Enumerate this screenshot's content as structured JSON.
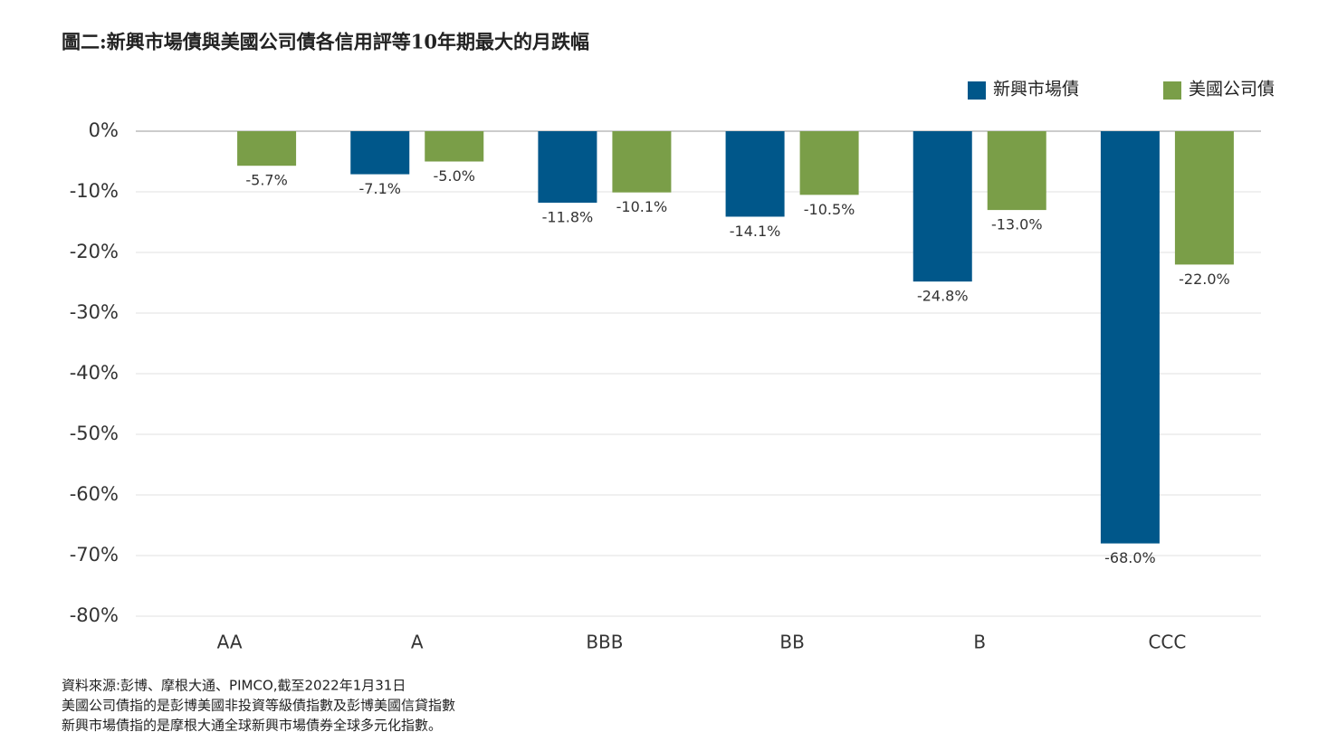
{
  "chart_data": {
    "type": "bar",
    "title": "圖二:新興市場債與美國公司債各信用評等10年期最大的月跌幅",
    "categories": [
      "AA",
      "A",
      "BBB",
      "BB",
      "B",
      "CCC"
    ],
    "series": [
      {
        "name": "新興市場債",
        "color": "#00578a",
        "values": [
          null,
          -7.1,
          -11.8,
          -14.1,
          -24.8,
          -68.0
        ],
        "value_labels": [
          null,
          "-7.1%",
          "-11.8%",
          "-14.1%",
          "-24.8%",
          "-68.0%"
        ]
      },
      {
        "name": "美國公司債",
        "color": "#7a9e48",
        "values": [
          -5.7,
          -5.0,
          -10.1,
          -10.5,
          -13.0,
          -22.0
        ],
        "value_labels": [
          "-5.7%",
          "-5.0%",
          "-10.1%",
          "-10.5%",
          "-13.0%",
          "-22.0%"
        ]
      }
    ],
    "ylim": [
      -80,
      0
    ],
    "yticks": [
      {
        "value": 0,
        "label": "0%"
      },
      {
        "value": -10,
        "label": "-10%"
      },
      {
        "value": -20,
        "label": "-20%"
      },
      {
        "value": -30,
        "label": "-30%"
      },
      {
        "value": -40,
        "label": "-40%"
      },
      {
        "value": -50,
        "label": "-50%"
      },
      {
        "value": -60,
        "label": "-60%"
      },
      {
        "value": -70,
        "label": "-70%"
      },
      {
        "value": -80,
        "label": "-80%"
      }
    ],
    "grid": true,
    "legend": "top-right",
    "footnotes": [
      "資料來源:彭博、摩根大通、PIMCO,截至2022年1月31日",
      "美國公司債指的是彭博美國非投資等級債指數及彭博美國信貸指數",
      "新興市場債指的是摩根大通全球新興市場債券全球多元化指數。"
    ]
  }
}
